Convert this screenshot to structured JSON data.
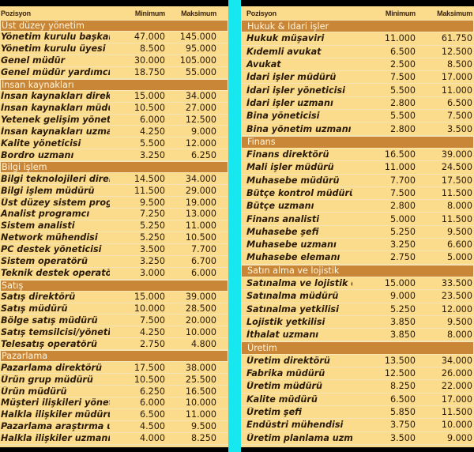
{
  "headers": {
    "position": "Pozisyon",
    "minimum": "Minimum",
    "maximum": "Maksimum"
  },
  "left": [
    {
      "section": "Üst düzey yönetim",
      "rows": [
        [
          "Yönetim kurulu başkanı",
          "47.000",
          "145.000"
        ],
        [
          "Yönetim kurulu üyesi",
          "8.500",
          "95.000"
        ],
        [
          "Genel müdür",
          "30.000",
          "105.000"
        ],
        [
          "Genel müdür yardımcısı",
          "18.750",
          "55.000"
        ]
      ]
    },
    {
      "section": "İnsan kaynakları",
      "rows": [
        [
          "İnsan kaynakları direktörü",
          "15.000",
          "34.000"
        ],
        [
          "İnsan kaynakları müdürü",
          "10.500",
          "27.000"
        ],
        [
          "Yetenek gelişim yöneticisi",
          "6.000",
          "12.500"
        ],
        [
          "İnsan kaynakları uzmanı",
          "4.250",
          "9.000"
        ],
        [
          "Kalite yöneticisi",
          "5.500",
          "12.000"
        ],
        [
          "Bordro uzmanı",
          "3.250",
          "6.250"
        ]
      ]
    },
    {
      "section": "Bilgi işlem",
      "rows": [
        [
          "Bilgi teknolojileri direktörü",
          "14.500",
          "34.000"
        ],
        [
          "Bilgi işlem müdürü",
          "11.500",
          "29.000"
        ],
        [
          "Üst düzey sistem programcısı",
          "9.500",
          "19.000"
        ],
        [
          "Analist programcı",
          "7.250",
          "13.000"
        ],
        [
          "Sistem analisti",
          "5.250",
          "11.000"
        ],
        [
          "Network mühendisi",
          "5.250",
          "10.500"
        ],
        [
          "PC destek yöneticisi",
          "3.500",
          "7.700"
        ],
        [
          "Sistem operatörü",
          "3.250",
          "6.700"
        ],
        [
          "Teknik destek operatörü",
          "3.000",
          "6.000"
        ]
      ]
    },
    {
      "section": "Satış",
      "rows": [
        [
          "Satış direktörü",
          "15.000",
          "39.000"
        ],
        [
          "Satış müdürü",
          "10.000",
          "28.500"
        ],
        [
          "Bölge satış müdürü",
          "7.500",
          "20.000"
        ],
        [
          "Satış temsilcisi/yöneticisi",
          "4.250",
          "10.000"
        ],
        [
          "Telesatış operatörü",
          "2.750",
          "4.800"
        ]
      ]
    },
    {
      "section": "Pazarlama",
      "rows": [
        [
          "Pazarlama direktörü",
          "17.500",
          "38.000"
        ],
        [
          "Ürün grup müdürü",
          "10.500",
          "25.500"
        ],
        [
          "Ürün müdürü",
          "6.250",
          "16.500"
        ],
        [
          "Müşteri ilişkileri yöneticisi",
          "6.000",
          "10.000"
        ],
        [
          "Halkla ilişkiler müdürü",
          "6.500",
          "11.000"
        ],
        [
          "Pazarlama araştırma uzmanı",
          "4.500",
          "9.500"
        ],
        [
          "Halkla ilişkiler uzmanı",
          "4.000",
          "8.250"
        ]
      ]
    }
  ],
  "right": [
    {
      "section": "Hukuk & İdari işler",
      "rows": [
        [
          "Hukuk müşaviri",
          "11.000",
          "61.750"
        ],
        [
          "Kıdemli avukat",
          "6.500",
          "12.500"
        ],
        [
          "Avukat",
          "2.500",
          "8.500"
        ],
        [
          "İdari işler müdürü",
          "7.500",
          "17.000"
        ],
        [
          "İdari işler yöneticisi",
          "5.500",
          "11.000"
        ],
        [
          "İdari işler uzmanı",
          "2.800",
          "6.500"
        ],
        [
          "Bina yöneticisi",
          "5.500",
          "7.500"
        ],
        [
          "Bina yönetim uzmanı",
          "2.800",
          "3.500"
        ]
      ]
    },
    {
      "section": "Finans",
      "rows": [
        [
          "Finans direktörü",
          "16.500",
          "39.000"
        ],
        [
          "Mali işler müdürü",
          "11.000",
          "24.500"
        ],
        [
          "Muhasebe müdürü",
          "7.700",
          "17.500"
        ],
        [
          "Bütçe kontrol müdürü",
          "7.500",
          "11.500"
        ],
        [
          "Bütçe uzmanı",
          "2.800",
          "8.000"
        ],
        [
          "Finans analisti",
          "5.000",
          "11.500"
        ],
        [
          "Muhasebe şefi",
          "5.250",
          "9.500"
        ],
        [
          "Muhasebe uzmanı",
          "3.250",
          "6.600"
        ],
        [
          "Muhasebe elemanı",
          "2.750",
          "5.000"
        ]
      ]
    },
    {
      "section": "Satın alma ve lojistik",
      "rows": [
        [
          "Satınalma ve lojistik direktörü",
          "15.000",
          "33.500"
        ],
        [
          "Satınalma müdürü",
          "9.000",
          "23.500"
        ],
        [
          "Satınalma yetkilisi",
          "5.250",
          "12.000"
        ],
        [
          "Lojistik yetkilisi",
          "3.850",
          "9.500"
        ],
        [
          "İthalat uzmanı",
          "3.850",
          "8.000"
        ]
      ]
    },
    {
      "section": "Üretim",
      "rows": [
        [
          "Üretim direktörü",
          "13.500",
          "34.000"
        ],
        [
          "Fabrika müdürü",
          "12.500",
          "26.000"
        ],
        [
          "Üretim müdürü",
          "8.250",
          "22.000"
        ],
        [
          "Kalite müdürü",
          "6.500",
          "17.000"
        ],
        [
          "Üretim şefi",
          "5.850",
          "11.500"
        ],
        [
          "Endüstri mühendisi",
          "3.750",
          "10.000"
        ],
        [
          "Üretim planlama uzmanı",
          "3.500",
          "9.000"
        ]
      ]
    }
  ]
}
